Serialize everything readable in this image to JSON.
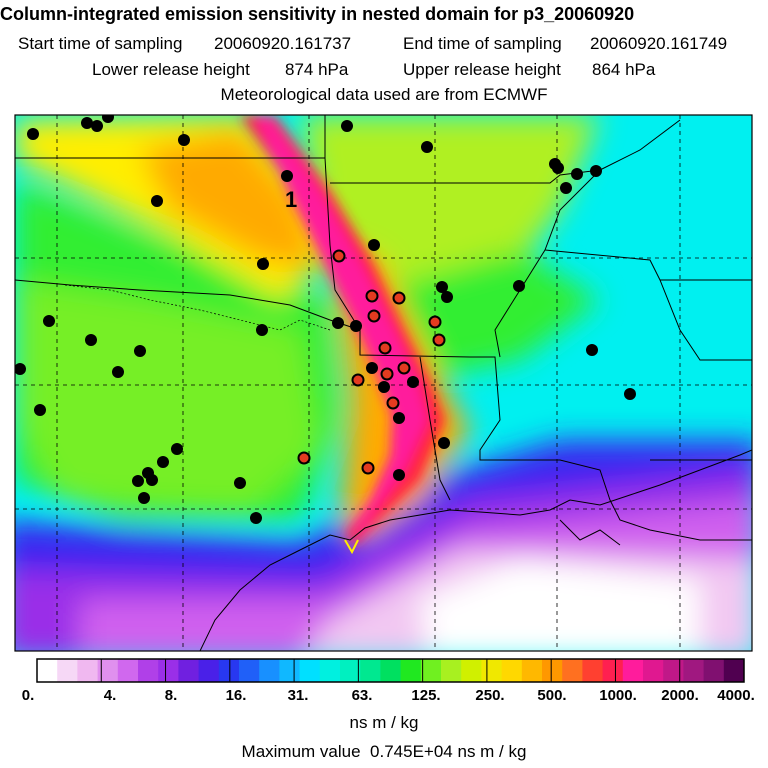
{
  "header": {
    "title": "Column-integrated emission sensitivity in nested domain for p3_20060920",
    "start_label": "Start time of sampling",
    "start_value": "20060920.161737",
    "end_label": "End time of sampling",
    "end_value": "20060920.161749",
    "lower_label": "Lower release height",
    "lower_value": "874 hPa",
    "upper_label": "Upper release height",
    "upper_value": "864 hPa",
    "met_line": "Meteorological data used are from ECMWF"
  },
  "map": {
    "marker_label": "1",
    "colors": {
      "very_low": "#ffffff",
      "pink_light": "#f2c8f2",
      "magenta": "#d060ee",
      "violet": "#9a2fe8",
      "blue": "#3a28f0",
      "sky": "#40b0ff",
      "cyan": "#00f0f0",
      "teal": "#00e8a0",
      "green": "#30ee30",
      "lime": "#b0f020",
      "yellow": "#ffee00",
      "orange": "#ffaa00",
      "red": "#ff2040",
      "hot_pink": "#ff1c9c",
      "marker_black": "#000000",
      "marker_red": "#e43b20"
    }
  },
  "colorbar": {
    "colors": [
      "#ffffff",
      "#f6d8f6",
      "#f0b8f0",
      "#e090ee",
      "#d068ee",
      "#b040e8",
      "#9a2fe8",
      "#7020e0",
      "#4a20e8",
      "#2838f0",
      "#2060f8",
      "#1890ff",
      "#10b8ff",
      "#00e0ff",
      "#00f0e0",
      "#00f0c0",
      "#00e890",
      "#00e060",
      "#20e820",
      "#70f020",
      "#a8f020",
      "#d0f000",
      "#f0e800",
      "#ffd800",
      "#ffb800",
      "#ff9800",
      "#ff7020",
      "#ff4030",
      "#ff2050",
      "#ff1c9c",
      "#e01890",
      "#c01888",
      "#a01880",
      "#801070",
      "#500050"
    ],
    "tick_labels": [
      "0.",
      "4.",
      "8.",
      "16.",
      "31.",
      "63.",
      "125.",
      "250.",
      "500.",
      "1000.",
      "2000.",
      "4000."
    ],
    "units": "ns m / kg"
  },
  "footer": {
    "max_label": "Maximum value",
    "max_value": "0.745E+04",
    "max_units": "ns m / kg"
  }
}
